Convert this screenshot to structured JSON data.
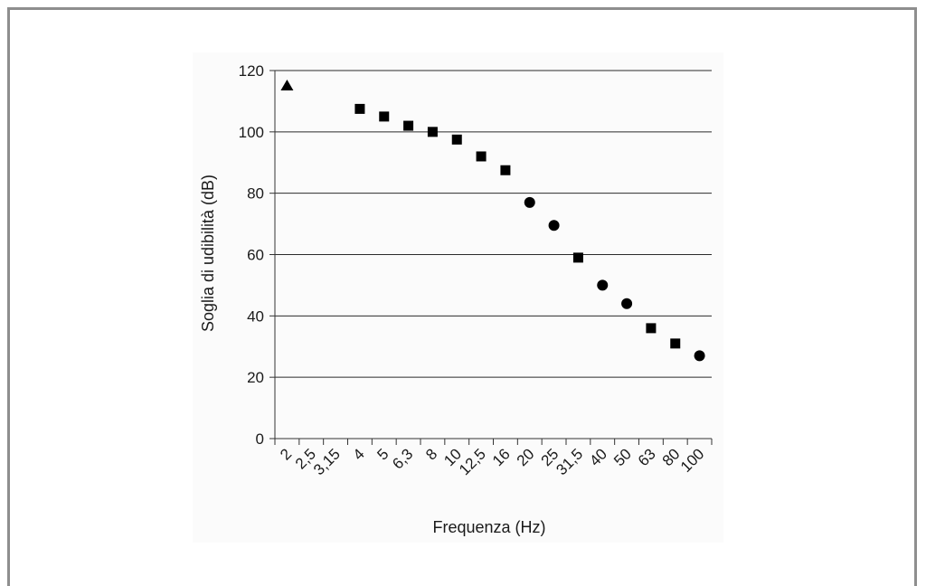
{
  "chart_data": {
    "type": "scatter",
    "title": "",
    "xlabel": "Frequenza (Hz)",
    "ylabel": "Soglia di udibilità (dB)",
    "categories": [
      "2",
      "2,5",
      "3,15",
      "4",
      "5",
      "6,3",
      "8",
      "10",
      "12,5",
      "16",
      "20",
      "25",
      "31,5",
      "40",
      "50",
      "63",
      "80",
      "100"
    ],
    "ylim": [
      0,
      120
    ],
    "yticks": [
      0,
      20,
      40,
      60,
      80,
      100,
      120
    ],
    "grid": "horizontal",
    "legend": "none",
    "series": [
      {
        "marker": "triangle",
        "points": [
          {
            "x": "2",
            "y": 115
          }
        ]
      },
      {
        "marker": "square",
        "points": [
          {
            "x": "4",
            "y": 107.5
          },
          {
            "x": "5",
            "y": 105
          },
          {
            "x": "6,3",
            "y": 102
          },
          {
            "x": "8",
            "y": 100
          },
          {
            "x": "10",
            "y": 97.5
          },
          {
            "x": "12,5",
            "y": 92
          },
          {
            "x": "16",
            "y": 87.5
          },
          {
            "x": "31,5",
            "y": 59
          },
          {
            "x": "63",
            "y": 36
          },
          {
            "x": "80",
            "y": 31
          }
        ]
      },
      {
        "marker": "circle",
        "points": [
          {
            "x": "20",
            "y": 77
          },
          {
            "x": "25",
            "y": 69.5
          },
          {
            "x": "40",
            "y": 50
          },
          {
            "x": "50",
            "y": 44
          },
          {
            "x": "100",
            "y": 27
          }
        ]
      }
    ],
    "colors": {
      "marker": "#000000",
      "grid": "#2b2b2b",
      "axis": "#333333"
    }
  }
}
